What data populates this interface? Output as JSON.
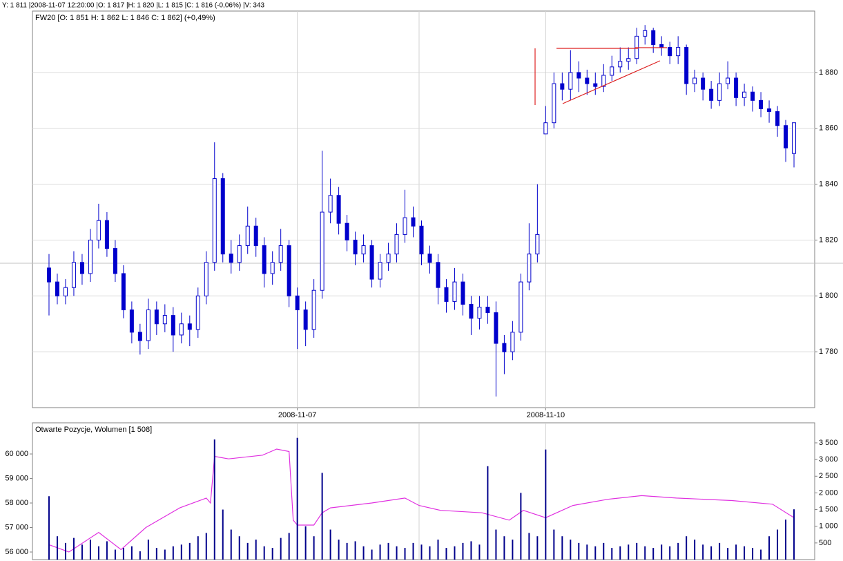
{
  "status": "Y: 1 811 |2008-11-07 12:20:00 |O: 1 817 |H: 1 820 |L: 1 815 |C: 1 816 (-0,06%) |V: 343",
  "chart_data": [
    {
      "type": "candlestick",
      "title": "FW20 [O: 1 851  H: 1 862  L: 1 846  C: 1 862]  (+0,49%)",
      "color": "#0000cc",
      "up_color": "#ffffff",
      "down_color": "#0000cc",
      "grid": true,
      "xlim": [
        -2,
        92.5
      ],
      "xticks": [
        {
          "value": 30,
          "label": "2008-11-07"
        },
        {
          "value": 60,
          "label": "2008-11-10"
        }
      ],
      "ylim": [
        1760,
        1902
      ],
      "yticks": [
        {
          "value": 1780,
          "label": "1 780"
        },
        {
          "value": 1800,
          "label": "1 800"
        },
        {
          "value": 1820,
          "label": "1 820"
        },
        {
          "value": 1840,
          "label": "1 840"
        },
        {
          "value": 1860,
          "label": "1 860"
        },
        {
          "value": 1880,
          "label": "1 880"
        }
      ],
      "open": [
        1810,
        1805,
        1800,
        1803,
        1812,
        1808,
        1820,
        1827,
        1817,
        1808,
        1795,
        1787,
        1784,
        1795,
        1790,
        1793,
        1786,
        1790,
        1788,
        1800,
        1812,
        1842,
        1815,
        1812,
        1818,
        1825,
        1818,
        1808,
        1812,
        1818,
        1800,
        1795,
        1788,
        1802,
        1830,
        1836,
        1826,
        1820,
        1815,
        1818,
        1806,
        1812,
        1815,
        1822,
        1828,
        1825,
        1815,
        1812,
        1803,
        1798,
        1805,
        1797,
        1792,
        1796,
        1794,
        1783,
        1780,
        1787,
        1805,
        1815,
        1858,
        1862,
        1876,
        1874,
        1880,
        1878,
        1876,
        1875,
        1879,
        1882,
        1884,
        1885,
        1893,
        1895,
        1890,
        1889,
        1886,
        1889,
        1876,
        1878,
        1874,
        1870,
        1876,
        1878,
        1871,
        1873,
        1870,
        1867,
        1866,
        1861,
        1851
      ],
      "high": [
        1815,
        1808,
        1806,
        1816,
        1815,
        1824,
        1833,
        1830,
        1820,
        1811,
        1798,
        1790,
        1799,
        1798,
        1797,
        1796,
        1794,
        1793,
        1803,
        1816,
        1855,
        1844,
        1820,
        1822,
        1832,
        1828,
        1821,
        1816,
        1824,
        1820,
        1803,
        1798,
        1806,
        1852,
        1842,
        1839,
        1829,
        1823,
        1822,
        1820,
        1815,
        1819,
        1826,
        1838,
        1832,
        1827,
        1818,
        1815,
        1806,
        1810,
        1808,
        1800,
        1800,
        1800,
        1798,
        1786,
        1791,
        1808,
        1826,
        1840,
        1868,
        1880,
        1880,
        1888,
        1884,
        1881,
        1880,
        1883,
        1886,
        1889,
        1889,
        1896,
        1897,
        1896,
        1893,
        1891,
        1893,
        1890,
        1881,
        1880,
        1877,
        1880,
        1884,
        1880,
        1876,
        1875,
        1873,
        1870,
        1868,
        1863,
        1862
      ],
      "low": [
        1793,
        1797,
        1797,
        1800,
        1804,
        1805,
        1817,
        1814,
        1805,
        1792,
        1783,
        1779,
        1781,
        1786,
        1787,
        1780,
        1783,
        1782,
        1785,
        1797,
        1809,
        1812,
        1808,
        1809,
        1815,
        1814,
        1803,
        1804,
        1809,
        1796,
        1781,
        1782,
        1785,
        1799,
        1826,
        1822,
        1816,
        1811,
        1812,
        1803,
        1803,
        1809,
        1812,
        1819,
        1821,
        1811,
        1808,
        1797,
        1794,
        1795,
        1793,
        1786,
        1788,
        1790,
        1764,
        1772,
        1777,
        1784,
        1802,
        1812,
        1859,
        1860,
        1870,
        1870,
        1873,
        1872,
        1872,
        1873,
        1877,
        1880,
        1881,
        1883,
        1890,
        1887,
        1886,
        1883,
        1883,
        1872,
        1873,
        1870,
        1867,
        1868,
        1874,
        1868,
        1868,
        1866,
        1864,
        1862,
        1857,
        1848,
        1846
      ],
      "close": [
        1805,
        1800,
        1803,
        1812,
        1808,
        1820,
        1827,
        1817,
        1808,
        1795,
        1787,
        1784,
        1795,
        1790,
        1793,
        1786,
        1790,
        1788,
        1800,
        1812,
        1842,
        1815,
        1812,
        1818,
        1825,
        1818,
        1808,
        1812,
        1818,
        1800,
        1795,
        1788,
        1802,
        1830,
        1836,
        1826,
        1820,
        1815,
        1818,
        1806,
        1812,
        1815,
        1822,
        1828,
        1825,
        1815,
        1812,
        1803,
        1798,
        1805,
        1797,
        1792,
        1796,
        1794,
        1783,
        1780,
        1787,
        1805,
        1815,
        1822,
        1862,
        1876,
        1874,
        1880,
        1878,
        1876,
        1875,
        1879,
        1882,
        1884,
        1885,
        1893,
        1895,
        1890,
        1889,
        1886,
        1889,
        1876,
        1878,
        1874,
        1870,
        1876,
        1878,
        1871,
        1873,
        1870,
        1867,
        1866,
        1861,
        1853,
        1862
      ]
    },
    {
      "type": "combo",
      "title": "Otwarte Pozycje, Wolumen [1 508]",
      "xlim": [
        -2,
        92.5
      ],
      "ylim": [
        55690,
        61270
      ],
      "yticks": [
        {
          "value": 56000,
          "label": "56 000"
        },
        {
          "value": 57000,
          "label": "57 000"
        },
        {
          "value": 58000,
          "label": "58 000"
        },
        {
          "value": 59000,
          "label": "59 000"
        },
        {
          "value": 60000,
          "label": "60 000"
        }
      ],
      "y2lim": [
        0,
        4100
      ],
      "y2ticks": [
        500,
        {
          "value": 1000,
          "label": "1 000"
        },
        {
          "value": 1500,
          "label": "1 500"
        },
        {
          "value": 2000,
          "label": "2 000"
        },
        {
          "value": 2500,
          "label": "2 500"
        },
        {
          "value": 3000,
          "label": "3 000"
        },
        {
          "value": 3500,
          "label": "3 500"
        }
      ],
      "series": [
        {
          "type": "line",
          "color": "#e030e0",
          "x": [
            0,
            2.4,
            6,
            8.7,
            11.7,
            15.8,
            19,
            19.5,
            20,
            21.7,
            25.8,
            27.5,
            29,
            29.5,
            30,
            32,
            33,
            34,
            39,
            43,
            44.7,
            47.3,
            52.3,
            55.6,
            57.3,
            60,
            63.3,
            67.5,
            71.6,
            75.8,
            82.5,
            87.4,
            90
          ],
          "values": [
            56300,
            56000,
            56800,
            56100,
            57000,
            57800,
            58200,
            58000,
            59900,
            59800,
            59950,
            60200,
            60100,
            57300,
            57100,
            57100,
            57600,
            57800,
            58000,
            58200,
            57900,
            57700,
            57600,
            57300,
            57700,
            57400,
            57900,
            58150,
            58300,
            58200,
            58100,
            57950,
            57400
          ]
        },
        {
          "type": "bar",
          "axis": "y2",
          "color": "#00008b",
          "values": [
            1900,
            700,
            500,
            650,
            450,
            600,
            400,
            550,
            300,
            350,
            400,
            250,
            600,
            350,
            300,
            400,
            450,
            500,
            700,
            800,
            3600,
            1500,
            900,
            700,
            500,
            600,
            400,
            350,
            650,
            800,
            3650,
            1000,
            700,
            2600,
            900,
            600,
            500,
            550,
            400,
            300,
            450,
            500,
            400,
            350,
            500,
            450,
            400,
            600,
            350,
            400,
            500,
            550,
            450,
            2800,
            900,
            700,
            600,
            2000,
            800,
            700,
            3300,
            900,
            700,
            600,
            500,
            450,
            400,
            500,
            350,
            400,
            450,
            500,
            400,
            350,
            450,
            400,
            500,
            700,
            600,
            450,
            400,
            500,
            350,
            450,
            400,
            350,
            300,
            700,
            900,
            1200,
            1508
          ]
        }
      ]
    }
  ]
}
